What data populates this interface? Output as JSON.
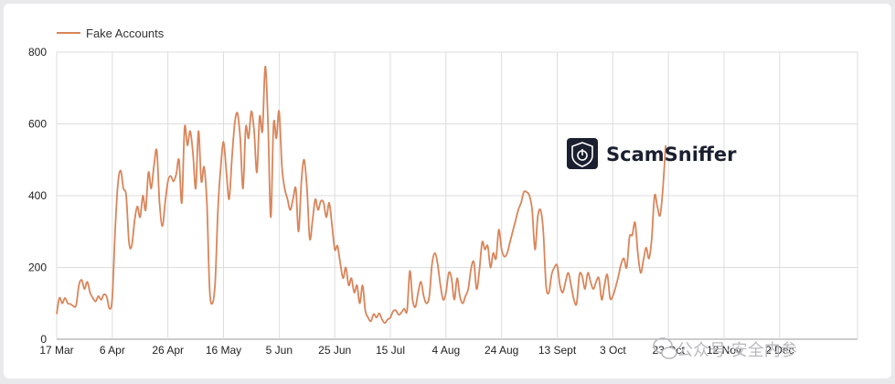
{
  "chart_data": {
    "type": "line",
    "title": "",
    "xlabel": "",
    "ylabel": "",
    "ylim": [
      0,
      800
    ],
    "yticks": [
      0,
      200,
      400,
      600,
      800
    ],
    "legend": "top-left",
    "grid": true,
    "x_tick_labels": [
      "17 Mar",
      "6 Apr",
      "26 Apr",
      "16 May",
      "5 Jun",
      "25 Jun",
      "15 Jul",
      "4 Aug",
      "24 Aug",
      "13 Sept",
      "3 Oct",
      "23 Oct",
      "12 Nov",
      "2 Dec"
    ],
    "x_tick_day_offsets": [
      0,
      20,
      40,
      60,
      80,
      100,
      120,
      140,
      160,
      180,
      200,
      220,
      240,
      260
    ],
    "x_range_days": [
      0,
      288
    ],
    "series": [
      {
        "name": "Fake Accounts",
        "color": "#d9855a",
        "points": [
          [
            0,
            70
          ],
          [
            1,
            115
          ],
          [
            2,
            100
          ],
          [
            3,
            115
          ],
          [
            4,
            100
          ],
          [
            5,
            98
          ],
          [
            6,
            92
          ],
          [
            7,
            95
          ],
          [
            8,
            150
          ],
          [
            9,
            165
          ],
          [
            10,
            140
          ],
          [
            11,
            160
          ],
          [
            12,
            130
          ],
          [
            13,
            115
          ],
          [
            14,
            105
          ],
          [
            15,
            120
          ],
          [
            16,
            110
          ],
          [
            17,
            125
          ],
          [
            18,
            118
          ],
          [
            19,
            85
          ],
          [
            20,
            115
          ],
          [
            21,
            300
          ],
          [
            22,
            430
          ],
          [
            23,
            470
          ],
          [
            24,
            420
          ],
          [
            25,
            400
          ],
          [
            26,
            270
          ],
          [
            27,
            260
          ],
          [
            28,
            330
          ],
          [
            29,
            370
          ],
          [
            30,
            340
          ],
          [
            31,
            400
          ],
          [
            32,
            360
          ],
          [
            33,
            465
          ],
          [
            34,
            420
          ],
          [
            35,
            485
          ],
          [
            36,
            525
          ],
          [
            37,
            380
          ],
          [
            38,
            315
          ],
          [
            39,
            380
          ],
          [
            40,
            440
          ],
          [
            41,
            455
          ],
          [
            42,
            440
          ],
          [
            43,
            460
          ],
          [
            44,
            500
          ],
          [
            45,
            380
          ],
          [
            46,
            590
          ],
          [
            47,
            540
          ],
          [
            48,
            580
          ],
          [
            49,
            520
          ],
          [
            50,
            420
          ],
          [
            51,
            580
          ],
          [
            52,
            440
          ],
          [
            53,
            480
          ],
          [
            54,
            380
          ],
          [
            55,
            140
          ],
          [
            56,
            100
          ],
          [
            57,
            160
          ],
          [
            58,
            360
          ],
          [
            59,
            480
          ],
          [
            60,
            550
          ],
          [
            61,
            470
          ],
          [
            62,
            390
          ],
          [
            63,
            500
          ],
          [
            64,
            600
          ],
          [
            65,
            630
          ],
          [
            66,
            560
          ],
          [
            67,
            420
          ],
          [
            68,
            590
          ],
          [
            69,
            560
          ],
          [
            70,
            635
          ],
          [
            71,
            580
          ],
          [
            72,
            465
          ],
          [
            73,
            620
          ],
          [
            74,
            580
          ],
          [
            75,
            760
          ],
          [
            76,
            600
          ],
          [
            77,
            340
          ],
          [
            78,
            600
          ],
          [
            79,
            560
          ],
          [
            80,
            635
          ],
          [
            81,
            480
          ],
          [
            82,
            420
          ],
          [
            83,
            390
          ],
          [
            84,
            360
          ],
          [
            85,
            390
          ],
          [
            86,
            420
          ],
          [
            87,
            300
          ],
          [
            88,
            440
          ],
          [
            89,
            500
          ],
          [
            90,
            420
          ],
          [
            91,
            280
          ],
          [
            92,
            330
          ],
          [
            93,
            390
          ],
          [
            94,
            360
          ],
          [
            95,
            385
          ],
          [
            96,
            380
          ],
          [
            97,
            340
          ],
          [
            98,
            380
          ],
          [
            99,
            320
          ],
          [
            100,
            250
          ],
          [
            101,
            260
          ],
          [
            102,
            210
          ],
          [
            103,
            170
          ],
          [
            104,
            200
          ],
          [
            105,
            150
          ],
          [
            106,
            170
          ],
          [
            107,
            130
          ],
          [
            108,
            150
          ],
          [
            109,
            100
          ],
          [
            110,
            150
          ],
          [
            111,
            80
          ],
          [
            112,
            60
          ],
          [
            113,
            50
          ],
          [
            114,
            70
          ],
          [
            115,
            60
          ],
          [
            116,
            72
          ],
          [
            117,
            55
          ],
          [
            118,
            45
          ],
          [
            119,
            55
          ],
          [
            120,
            60
          ],
          [
            121,
            78
          ],
          [
            122,
            80
          ],
          [
            123,
            68
          ],
          [
            124,
            75
          ],
          [
            125,
            85
          ],
          [
            126,
            80
          ],
          [
            127,
            190
          ],
          [
            128,
            110
          ],
          [
            129,
            90
          ],
          [
            130,
            130
          ],
          [
            131,
            160
          ],
          [
            132,
            120
          ],
          [
            133,
            100
          ],
          [
            134,
            120
          ],
          [
            135,
            210
          ],
          [
            136,
            240
          ],
          [
            137,
            210
          ],
          [
            138,
            150
          ],
          [
            139,
            110
          ],
          [
            140,
            130
          ],
          [
            141,
            185
          ],
          [
            142,
            170
          ],
          [
            143,
            110
          ],
          [
            144,
            170
          ],
          [
            145,
            120
          ],
          [
            146,
            100
          ],
          [
            147,
            120
          ],
          [
            148,
            140
          ],
          [
            149,
            195
          ],
          [
            150,
            215
          ],
          [
            151,
            140
          ],
          [
            152,
            190
          ],
          [
            153,
            270
          ],
          [
            154,
            250
          ],
          [
            155,
            260
          ],
          [
            156,
            200
          ],
          [
            157,
            240
          ],
          [
            158,
            225
          ],
          [
            159,
            305
          ],
          [
            160,
            250
          ],
          [
            161,
            230
          ],
          [
            162,
            240
          ],
          [
            163,
            270
          ],
          [
            164,
            300
          ],
          [
            165,
            330
          ],
          [
            166,
            360
          ],
          [
            167,
            380
          ],
          [
            168,
            410
          ],
          [
            169,
            410
          ],
          [
            170,
            400
          ],
          [
            171,
            360
          ],
          [
            172,
            250
          ],
          [
            173,
            340
          ],
          [
            174,
            360
          ],
          [
            175,
            300
          ],
          [
            176,
            150
          ],
          [
            177,
            130
          ],
          [
            178,
            180
          ],
          [
            179,
            200
          ],
          [
            180,
            205
          ],
          [
            181,
            150
          ],
          [
            182,
            130
          ],
          [
            183,
            160
          ],
          [
            184,
            185
          ],
          [
            185,
            150
          ],
          [
            186,
            110
          ],
          [
            187,
            100
          ],
          [
            188,
            180
          ],
          [
            189,
            175
          ],
          [
            190,
            140
          ],
          [
            191,
            185
          ],
          [
            192,
            160
          ],
          [
            193,
            140
          ],
          [
            194,
            160
          ],
          [
            195,
            170
          ],
          [
            196,
            110
          ],
          [
            197,
            150
          ],
          [
            198,
            180
          ],
          [
            199,
            115
          ],
          [
            200,
            120
          ],
          [
            201,
            145
          ],
          [
            202,
            175
          ],
          [
            203,
            210
          ],
          [
            204,
            225
          ],
          [
            205,
            200
          ],
          [
            206,
            285
          ],
          [
            207,
            290
          ],
          [
            208,
            325
          ],
          [
            209,
            240
          ],
          [
            210,
            185
          ],
          [
            211,
            220
          ],
          [
            212,
            255
          ],
          [
            213,
            225
          ],
          [
            214,
            280
          ],
          [
            215,
            400
          ],
          [
            216,
            370
          ],
          [
            217,
            345
          ],
          [
            218,
            420
          ],
          [
            219,
            540
          ]
        ]
      }
    ]
  },
  "brand": {
    "name": "ScamSniffer",
    "logo_icon": "shield-power-icon"
  },
  "watermark": {
    "text": "公众号·安全内参",
    "icon": "wechat-icon"
  }
}
